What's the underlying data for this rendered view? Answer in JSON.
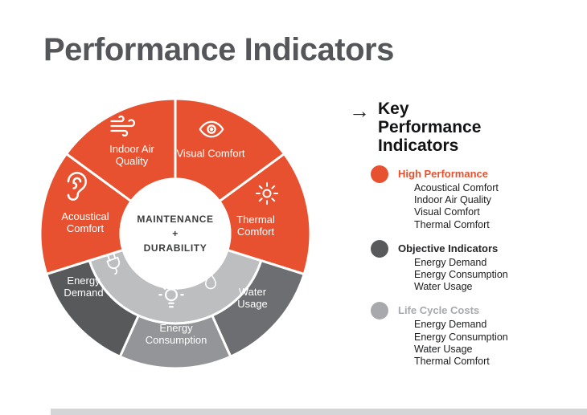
{
  "page": {
    "title": "Performance Indicators"
  },
  "wheel": {
    "center_label": "MAINTENANCE\n+\nDURABILITY",
    "inner_ring": {
      "color": "#BCBEC0",
      "a0": 107.5,
      "a1": 252.5
    },
    "segments": [
      {
        "name": "indoor-air-quality",
        "label": "Indoor Air\nQuality",
        "icon": "air-icon",
        "color": "#E8512F",
        "a0": -53.75,
        "a1": 0,
        "ring": "full"
      },
      {
        "name": "visual-comfort",
        "label": "Visual Comfort",
        "icon": "eye-icon",
        "color": "#E8512F",
        "a0": 0,
        "a1": 53.75,
        "ring": "full"
      },
      {
        "name": "acoustical-comfort",
        "label": "Acoustical\nComfort",
        "icon": "ear-icon",
        "color": "#E8512F",
        "a0": -107.5,
        "a1": -53.75,
        "ring": "full"
      },
      {
        "name": "thermal-comfort",
        "label": "Thermal\nComfort",
        "icon": "thermal-icon",
        "color": "#E8512F",
        "a0": 53.75,
        "a1": 107.5,
        "ring": "full"
      },
      {
        "name": "water-usage",
        "label": "Water\nUsage",
        "icon": "water-drop-icon",
        "color": "#6D6E71",
        "a0": 107.5,
        "a1": 155.83,
        "ring": "outer"
      },
      {
        "name": "energy-consumption",
        "label": "Energy\nConsumption",
        "icon": "lightbulb-icon",
        "color": "#939598",
        "a0": 155.83,
        "a1": 204.17,
        "ring": "outer"
      },
      {
        "name": "energy-demand",
        "label": "Energy\nDemand",
        "icon": "plug-icon",
        "color": "#58595B",
        "a0": 204.17,
        "a1": 252.5,
        "ring": "outer"
      }
    ]
  },
  "legend": {
    "arrow": "→",
    "title": "Key\nPerformance\nIndicators",
    "groups": [
      {
        "name": "high-performance",
        "color": "#E8512F",
        "label_color": "#E8512F",
        "label": "High Performance",
        "items": [
          "Acoustical Comfort",
          "Indoor Air Quality",
          "Visual Comfort",
          "Thermal Comfort"
        ]
      },
      {
        "name": "objective-indicators",
        "color": "#58595B",
        "label_color": "#242527",
        "label": "Objective Indicators",
        "items": [
          "Energy Demand",
          "Energy Consumption",
          "Water Usage"
        ]
      },
      {
        "name": "life-cycle-costs",
        "color": "#A7A9AC",
        "label_color": "#A7A9AC",
        "label": "Life Cycle Costs",
        "items": [
          "Energy Demand",
          "Energy Consumption",
          "Water Usage",
          "Thermal Comfort"
        ]
      }
    ]
  }
}
